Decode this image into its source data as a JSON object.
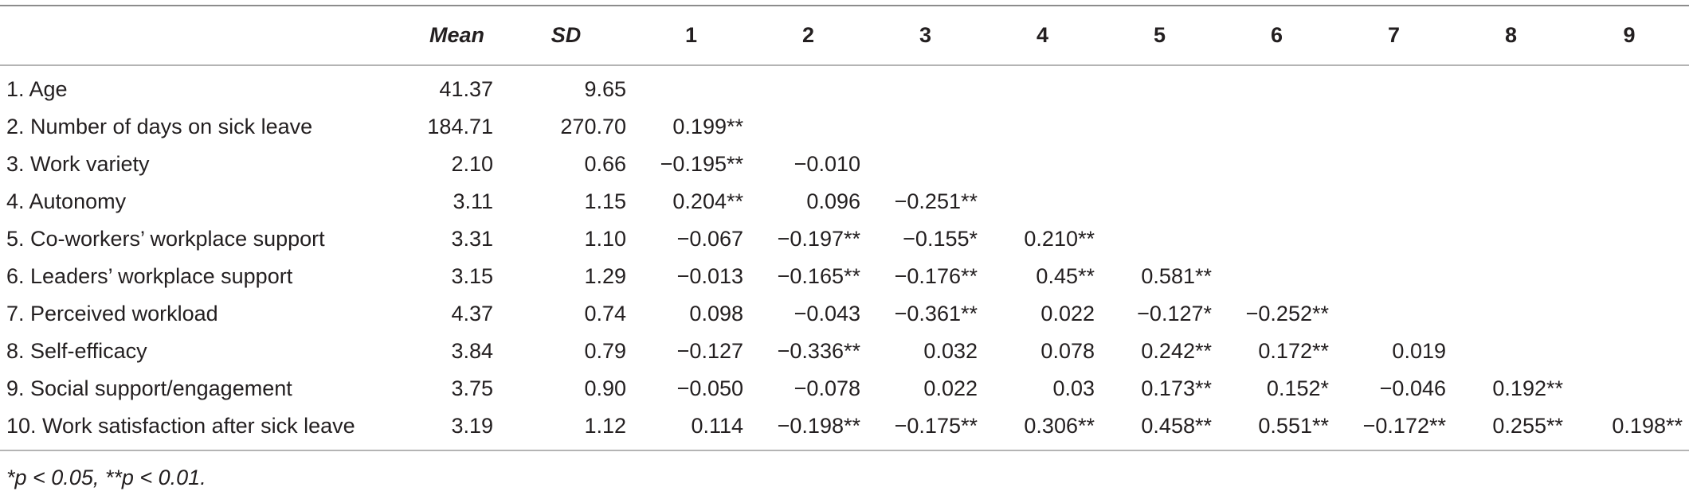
{
  "table": {
    "headers": [
      "",
      "Mean",
      "SD",
      "1",
      "2",
      "3",
      "4",
      "5",
      "6",
      "7",
      "8",
      "9"
    ],
    "rows": [
      {
        "variable": "1. Age",
        "mean": "41.37",
        "sd": "9.65",
        "correlations": [
          "",
          "",
          "",
          "",
          "",
          "",
          "",
          "",
          ""
        ]
      },
      {
        "variable": "2. Number of days on sick leave",
        "mean": "184.71",
        "sd": "270.70",
        "correlations": [
          "0.199**",
          "",
          "",
          "",
          "",
          "",
          "",
          "",
          ""
        ]
      },
      {
        "variable": "3. Work variety",
        "mean": "2.10",
        "sd": "0.66",
        "correlations": [
          "−0.195**",
          "−0.010",
          "",
          "",
          "",
          "",
          "",
          "",
          ""
        ]
      },
      {
        "variable": "4. Autonomy",
        "mean": "3.11",
        "sd": "1.15",
        "correlations": [
          "0.204**",
          "0.096",
          "−0.251**",
          "",
          "",
          "",
          "",
          "",
          ""
        ]
      },
      {
        "variable": "5. Co-workers’ workplace support",
        "mean": "3.31",
        "sd": "1.10",
        "correlations": [
          "−0.067",
          "−0.197**",
          "−0.155*",
          "0.210**",
          "",
          "",
          "",
          "",
          ""
        ]
      },
      {
        "variable": "6. Leaders’ workplace support",
        "mean": "3.15",
        "sd": "1.29",
        "correlations": [
          "−0.013",
          "−0.165**",
          "−0.176**",
          "0.45**",
          "0.581**",
          "",
          "",
          "",
          ""
        ]
      },
      {
        "variable": "7. Perceived workload",
        "mean": "4.37",
        "sd": "0.74",
        "correlations": [
          "0.098",
          "−0.043",
          "−0.361**",
          "0.022",
          "−0.127*",
          "−0.252**",
          "",
          "",
          ""
        ]
      },
      {
        "variable": "8. Self-efficacy",
        "mean": "3.84",
        "sd": "0.79",
        "correlations": [
          "−0.127",
          "−0.336**",
          "0.032",
          "0.078",
          "0.242**",
          "0.172**",
          "0.019",
          "",
          ""
        ]
      },
      {
        "variable": "9. Social support/engagement",
        "mean": "3.75",
        "sd": "0.90",
        "correlations": [
          "−0.050",
          "−0.078",
          "0.022",
          "0.03",
          "0.173**",
          "0.152*",
          "−0.046",
          "0.192**",
          ""
        ]
      },
      {
        "variable": "10. Work satisfaction after sick leave",
        "mean": "3.19",
        "sd": "1.12",
        "correlations": [
          "0.114",
          "−0.198**",
          "−0.175**",
          "0.306**",
          "0.458**",
          "0.551**",
          "−0.172**",
          "0.255**",
          "0.198**"
        ]
      }
    ]
  },
  "footnote": "*p < 0.05, **p < 0.01."
}
